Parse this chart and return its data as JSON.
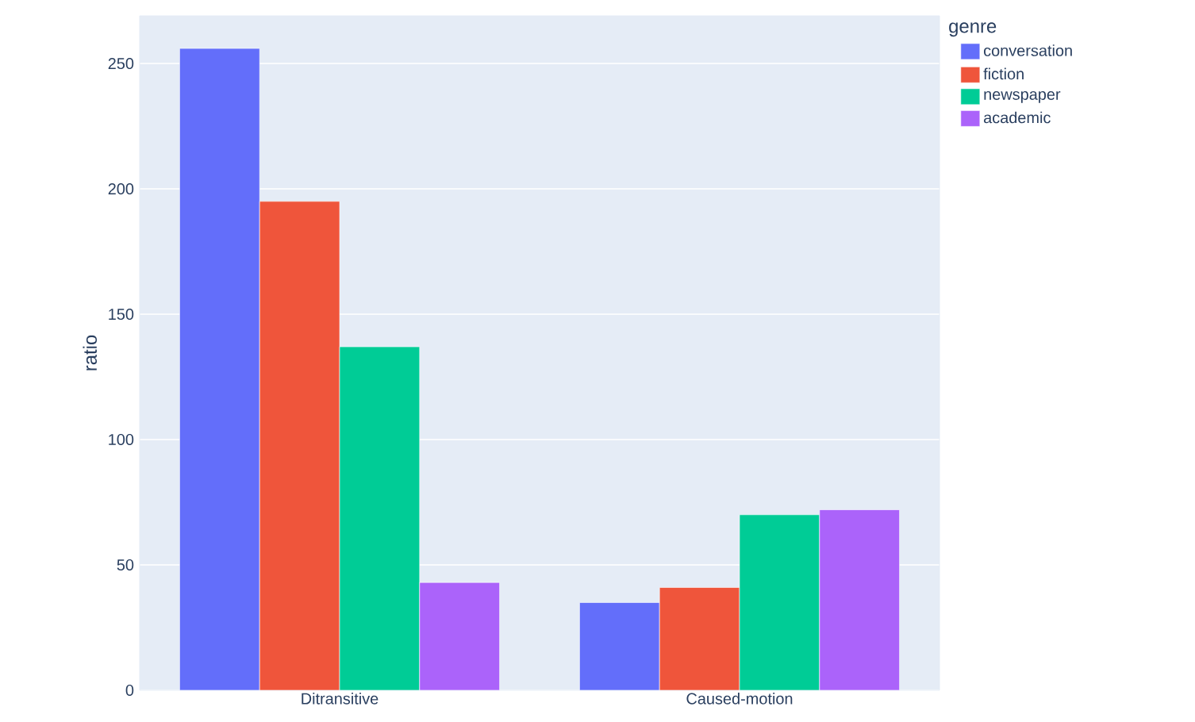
{
  "chart_data": {
    "type": "bar",
    "ylabel": "ratio",
    "legend_title": "genre",
    "categories": [
      "Ditransitive",
      "Caused-motion"
    ],
    "series": [
      {
        "name": "conversation",
        "color": "#636efa",
        "values": [
          256,
          35
        ]
      },
      {
        "name": "fiction",
        "color": "#ef553b",
        "values": [
          195,
          41
        ]
      },
      {
        "name": "newspaper",
        "color": "#00cc96",
        "values": [
          137,
          70
        ]
      },
      {
        "name": "academic",
        "color": "#ab63fa",
        "values": [
          43,
          72
        ]
      }
    ],
    "ylim": [
      0,
      269
    ],
    "yticks": [
      0,
      50,
      100,
      150,
      200,
      250
    ],
    "grid": "y",
    "legend": "top right"
  }
}
